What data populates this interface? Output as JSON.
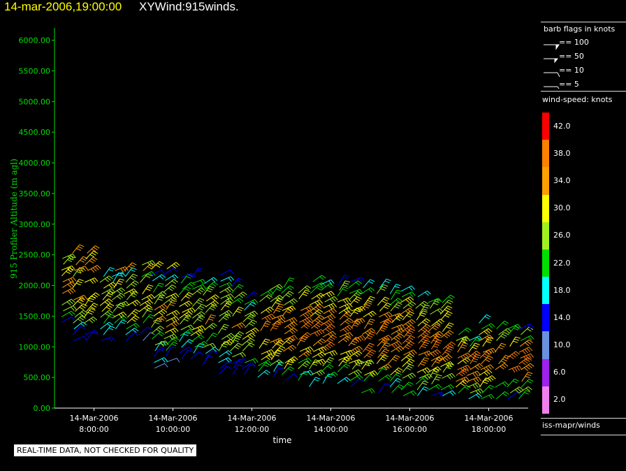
{
  "header": {
    "datetime": "14-mar-2006,19:00:00",
    "product": "XYWind:915winds."
  },
  "chart_data": {
    "type": "scatter",
    "subtype": "wind-barb",
    "xlabel": "time",
    "ylabel": "915 Profiler Altitude (m agl)",
    "ylim": [
      0,
      6200
    ],
    "yticks": [
      "0.00",
      "500.00",
      "1000.00",
      "1500.00",
      "2000.00",
      "2500.00",
      "3000.00",
      "3500.00",
      "4000.00",
      "4500.00",
      "5000.00",
      "5500.00",
      "6000.00"
    ],
    "xticks": [
      {
        "date": "14-Mar-2006",
        "time": "8:00:00"
      },
      {
        "date": "14-Mar-2006",
        "time": "10:00:00"
      },
      {
        "date": "14-Mar-2006",
        "time": "12:00:00"
      },
      {
        "date": "14-Mar-2006",
        "time": "14:00:00"
      },
      {
        "date": "14-Mar-2006",
        "time": "16:00:00"
      },
      {
        "date": "14-Mar-2006",
        "time": "18:00:00"
      }
    ],
    "xlim_hours": [
      7.0,
      19.0
    ],
    "profile_times_hours": [
      7.2,
      7.5,
      7.8,
      8.2,
      8.5,
      8.8,
      9.2,
      9.5,
      9.8,
      10.2,
      10.5,
      10.8,
      11.2,
      11.5,
      11.8,
      12.2,
      12.5,
      12.8,
      13.2,
      13.5,
      13.8,
      14.2,
      14.5,
      14.8,
      15.2,
      15.5,
      15.8,
      16.2,
      16.5,
      16.8,
      17.2,
      17.5,
      17.8,
      18.2,
      18.5,
      18.8
    ],
    "profile_tops_m": [
      2600,
      2600,
      2600,
      2400,
      2300,
      2300,
      2350,
      2350,
      2300,
      2200,
      2200,
      2200,
      2200,
      2100,
      1900,
      1900,
      2000,
      2000,
      2050,
      2150,
      2100,
      2050,
      2100,
      2050,
      2050,
      1950,
      1950,
      1850,
      1800,
      1800,
      1200,
      1150,
      1400,
      1350,
      1350,
      1300
    ],
    "profile_bottoms_m": [
      1300,
      1100,
      1100,
      1100,
      1100,
      1100,
      1100,
      650,
      750,
      800,
      800,
      700,
      550,
      550,
      550,
      500,
      500,
      450,
      450,
      350,
      400,
      400,
      350,
      250,
      250,
      250,
      200,
      200,
      200,
      200,
      150,
      150,
      150,
      150,
      150,
      150
    ],
    "colorbar": {
      "title": "wind-speed: knots",
      "labels": [
        "42.0",
        "38.0",
        "34.0",
        "30.0",
        "26.0",
        "22.0",
        "18.0",
        "14.0",
        "10.0",
        "6.0",
        "2.0"
      ],
      "colors": [
        "#ff0000",
        "#ff8000",
        "#ffa000",
        "#ffff00",
        "#a0f020",
        "#00e000",
        "#00ffff",
        "#0000ff",
        "#6a90e0",
        "#a020f0",
        "#f080f0"
      ]
    }
  },
  "barb_legend": {
    "title": "barb flags in knots",
    "items": [
      "== 100",
      "== 50",
      "== 10",
      "== 5"
    ]
  },
  "source_label": "iss-mapr/winds",
  "qc_note": "REAL-TIME DATA, NOT CHECKED FOR QUALITY",
  "colors": {
    "axis": "#00e000",
    "title_date": "#ffff00",
    "background": "#000000"
  }
}
